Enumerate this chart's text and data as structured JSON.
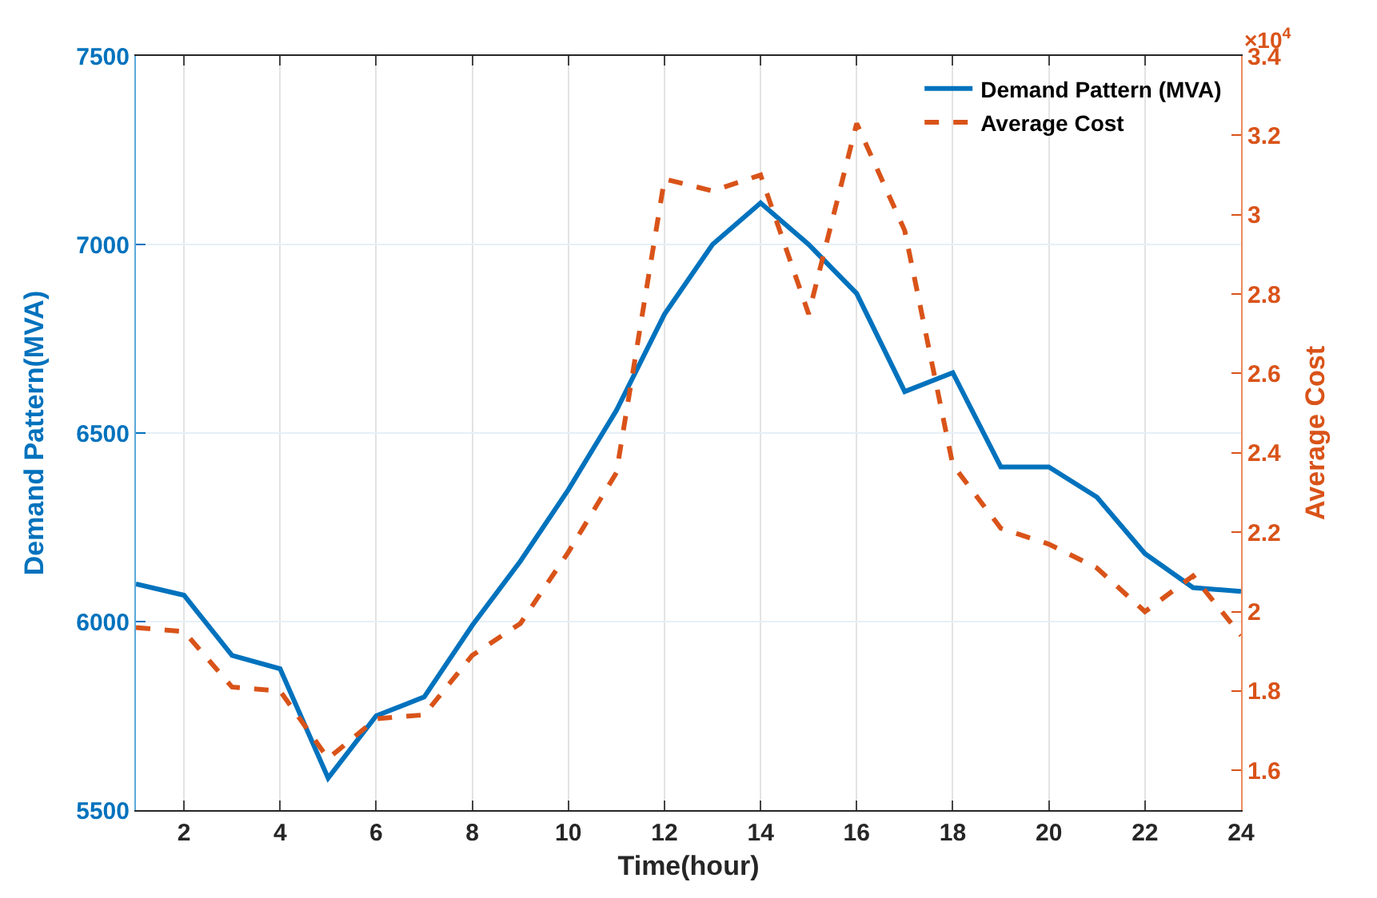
{
  "chart_data": {
    "type": "line",
    "xlabel": "Time(hour)",
    "ylabel": "Demand Pattern(MVA)",
    "y2label": "Average Cost",
    "x": [
      1,
      2,
      3,
      4,
      5,
      6,
      7,
      8,
      9,
      10,
      11,
      12,
      13,
      14,
      15,
      16,
      17,
      18,
      19,
      20,
      21,
      22,
      23,
      24
    ],
    "series": [
      {
        "name": "Demand Pattern (MVA)",
        "color": "#0072bd",
        "line_style": "solid",
        "values": [
          6100,
          6070,
          5910,
          5875,
          5585,
          5750,
          5800,
          5990,
          6160,
          6350,
          6560,
          6815,
          7000,
          7110,
          7000,
          6870,
          6610,
          6660,
          6410,
          6410,
          6330,
          6180,
          6090,
          6080
        ]
      },
      {
        "name": "Average Cost",
        "color": "#d95319",
        "line_style": "dashed",
        "axis": "y2",
        "values": [
          1.96,
          1.95,
          1.81,
          1.8,
          1.63,
          1.73,
          1.74,
          1.89,
          1.97,
          2.15,
          2.35,
          3.09,
          3.06,
          3.1,
          2.75,
          3.23,
          2.96,
          2.37,
          2.21,
          2.17,
          2.11,
          2.0,
          2.09,
          1.94
        ]
      }
    ],
    "xlim": [
      1,
      24
    ],
    "xticks": [
      2,
      4,
      6,
      8,
      10,
      12,
      14,
      16,
      18,
      20,
      22,
      24
    ],
    "ylim": [
      5500,
      7500
    ],
    "yticks": [
      5500,
      6000,
      6500,
      7000,
      7500
    ],
    "y2lim": [
      1.5,
      3.4
    ],
    "y2ticks": [
      1.6,
      1.8,
      2,
      2.2,
      2.4,
      2.6,
      2.8,
      3,
      3.2,
      3.4
    ],
    "annotations": [
      "×10$^{4}$"
    ],
    "grid": true,
    "legend": "top right",
    "marker": "none"
  }
}
